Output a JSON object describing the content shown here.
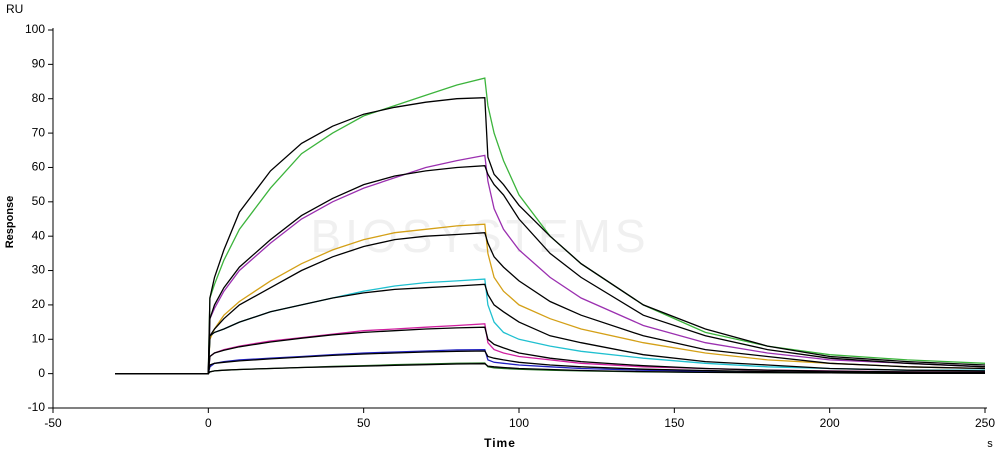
{
  "chart_data": {
    "type": "line",
    "y_unit": "RU",
    "ylabel": "Response",
    "xlabel": "Time",
    "x_unit": "s",
    "watermark": "BIOSYSTEMS",
    "xlim": [
      -50,
      250
    ],
    "ylim": [
      -10,
      100
    ],
    "xticks": [
      -50,
      0,
      50,
      100,
      150,
      200,
      250
    ],
    "yticks": [
      -10,
      0,
      10,
      20,
      30,
      40,
      50,
      60,
      70,
      80,
      90,
      100
    ],
    "x": [
      -30,
      0,
      0.5,
      2,
      5,
      10,
      20,
      30,
      40,
      50,
      60,
      70,
      80,
      89,
      90,
      92,
      95,
      100,
      110,
      120,
      140,
      160,
      180,
      200,
      225,
      250
    ],
    "series": [
      {
        "color": "#3cb43c",
        "values": [
          0,
          0,
          22,
          26,
          33,
          42,
          54,
          64,
          70,
          75,
          78,
          81,
          84,
          86,
          78,
          70,
          62,
          52,
          40,
          32,
          20,
          12,
          8,
          5.5,
          4,
          3
        ]
      },
      {
        "color": "#9b30b0",
        "values": [
          0,
          0,
          16,
          19,
          24,
          30,
          38,
          45,
          50,
          54,
          57,
          60,
          62,
          63.5,
          56,
          48,
          42,
          36,
          28,
          22,
          14,
          9,
          6,
          4,
          3,
          2
        ]
      },
      {
        "color": "#d4a017",
        "values": [
          0,
          0,
          10,
          13,
          17,
          21,
          27,
          32,
          36,
          39,
          41,
          42,
          43,
          43.5,
          35,
          28,
          24,
          20,
          16,
          13,
          9,
          6,
          4,
          3,
          2,
          1.5
        ]
      },
      {
        "color": "#20c0d0",
        "values": [
          0,
          0,
          11,
          12,
          13,
          15,
          18,
          20,
          22,
          24,
          25.5,
          26.5,
          27,
          27.5,
          20,
          15,
          12,
          10,
          8,
          6.5,
          4.5,
          3,
          2,
          1.5,
          1,
          1
        ]
      },
      {
        "color": "#d020a0",
        "values": [
          0,
          0,
          5,
          6,
          7,
          8,
          9.5,
          10.5,
          11.5,
          12.5,
          13,
          13.5,
          14,
          14.5,
          9,
          7,
          6,
          5,
          4,
          3,
          2,
          1.5,
          1,
          0.8,
          0.5,
          0.5
        ]
      },
      {
        "color": "#2020c0",
        "values": [
          0,
          0,
          2,
          3,
          3.5,
          4,
          4.5,
          5,
          5.5,
          6,
          6.3,
          6.6,
          6.9,
          7,
          4,
          3.3,
          3,
          2.5,
          2,
          1.5,
          1,
          0.7,
          0.5,
          0.4,
          0.3,
          0.2
        ]
      },
      {
        "color": "#207020",
        "values": [
          0,
          0,
          0.5,
          0.8,
          1,
          1.2,
          1.5,
          1.8,
          2.1,
          2.3,
          2.6,
          2.8,
          3,
          3.1,
          2,
          1.7,
          1.5,
          1.3,
          1,
          0.8,
          0.5,
          0.4,
          0.3,
          0.2,
          0.1,
          0.1
        ]
      },
      {
        "color": "#000000",
        "values": [
          0,
          0,
          22,
          28,
          36,
          47,
          59,
          67,
          72,
          75.5,
          77.5,
          79,
          80,
          80.3,
          63,
          58,
          55,
          49,
          40,
          32,
          20,
          13,
          8,
          5,
          3.5,
          2.5
        ]
      },
      {
        "color": "#000000",
        "values": [
          0,
          0,
          16,
          20,
          25,
          31,
          39,
          46,
          51,
          55,
          57.5,
          59,
          60,
          60.5,
          58,
          55,
          52,
          45,
          35,
          28,
          17,
          11,
          7,
          4.5,
          3,
          2
        ]
      },
      {
        "color": "#000000",
        "values": [
          0,
          0,
          11,
          13,
          16,
          20,
          25,
          30,
          34,
          37,
          39,
          40,
          40.5,
          41,
          38,
          34,
          31,
          27,
          21,
          17,
          11,
          7,
          5,
          3,
          2,
          1.5
        ]
      },
      {
        "color": "#000000",
        "values": [
          0,
          0,
          11,
          12,
          13,
          15,
          18,
          20,
          22,
          23.5,
          24.5,
          25,
          25.5,
          26,
          23,
          20,
          18,
          15,
          11,
          9,
          5.5,
          3.5,
          2.5,
          1.5,
          1,
          0.8
        ]
      },
      {
        "color": "#000000",
        "values": [
          0,
          0,
          5,
          6,
          6.8,
          7.8,
          9.2,
          10.3,
          11.3,
          12,
          12.5,
          13,
          13.3,
          13.5,
          10,
          8.5,
          7.5,
          6,
          4.5,
          3.5,
          2.3,
          1.5,
          1,
          0.7,
          0.5,
          0.4
        ]
      },
      {
        "color": "#000000",
        "values": [
          0,
          0,
          2.5,
          3,
          3.3,
          3.7,
          4.3,
          4.8,
          5.3,
          5.7,
          6,
          6.3,
          6.5,
          6.6,
          5,
          4.5,
          4,
          3.3,
          2.5,
          2,
          1.3,
          0.9,
          0.6,
          0.4,
          0.3,
          0.2
        ]
      },
      {
        "color": "#000000",
        "values": [
          0,
          0,
          0.5,
          0.8,
          1,
          1.2,
          1.5,
          1.8,
          2,
          2.2,
          2.4,
          2.6,
          2.8,
          2.9,
          2.2,
          2,
          1.8,
          1.5,
          1.2,
          0.9,
          0.6,
          0.4,
          0.3,
          0.2,
          0.1,
          0.1
        ]
      }
    ]
  }
}
